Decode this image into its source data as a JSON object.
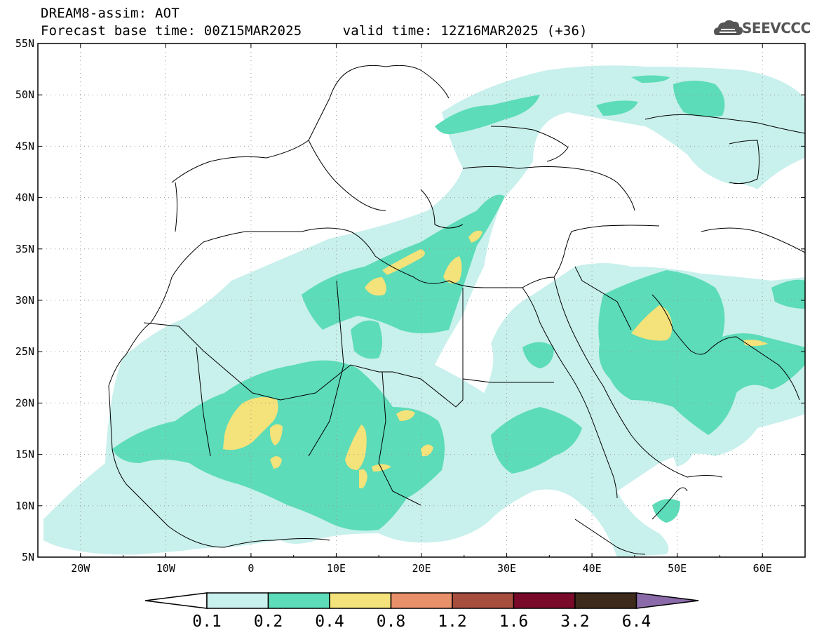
{
  "header": {
    "line1": "DREAM8-assim: AOT",
    "line2": "Forecast base time: 00Z15MAR2025     valid time: 12Z16MAR2025 (+36)",
    "brand": "SEEVCCC",
    "brand_icon": "cloud-logo-icon"
  },
  "map": {
    "lon_range": [
      -25,
      65
    ],
    "lat_range": [
      5,
      55
    ],
    "lat_labels": [
      "55N",
      "50N",
      "45N",
      "40N",
      "35N",
      "30N",
      "25N",
      "20N",
      "15N",
      "10N",
      "5N"
    ],
    "lon_labels": [
      "20W",
      "10W",
      "0",
      "10E",
      "20E",
      "30E",
      "40E",
      "50E",
      "60E"
    ],
    "grid": "dotted"
  },
  "colorbar": {
    "labels": [
      "0.1",
      "0.2",
      "0.4",
      "0.8",
      "1.2",
      "1.6",
      "3.2",
      "6.4"
    ],
    "colors": [
      "#ffffff",
      "#c8f0ec",
      "#5cdcb8",
      "#f4e27a",
      "#e8906a",
      "#a84e3e",
      "#7a0a2a",
      "#3e2a1a",
      "#8a6aa8"
    ]
  }
}
